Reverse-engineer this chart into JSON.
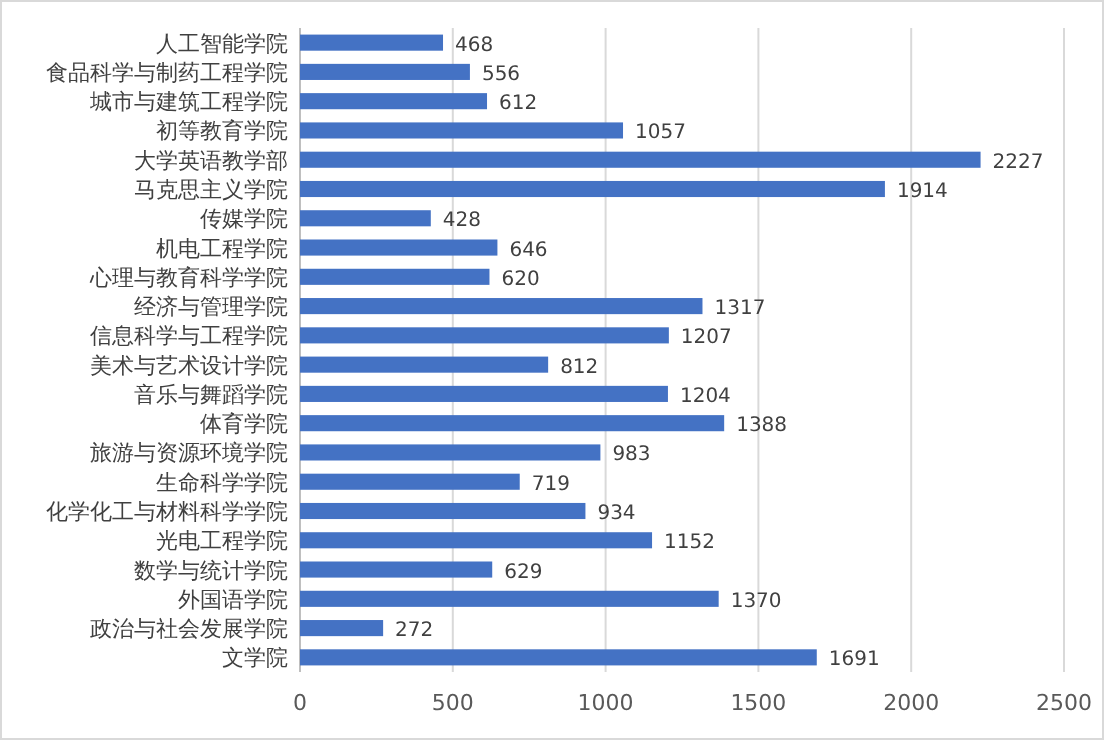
{
  "chart_data": {
    "type": "bar",
    "orientation": "horizontal",
    "categories": [
      "人工智能学院",
      "食品科学与制药工程学院",
      "城市与建筑工程学院",
      "初等教育学院",
      "大学英语教学部",
      "马克思主义学院",
      "传媒学院",
      "机电工程学院",
      "心理与教育科学学院",
      "经济与管理学院",
      "信息科学与工程学院",
      "美术与艺术设计学院",
      "音乐与舞蹈学院",
      "体育学院",
      "旅游与资源环境学院",
      "生命科学学院",
      "化学化工与材料科学学院",
      "光电工程学院",
      "数学与统计学院",
      "外国语学院",
      "政治与社会发展学院",
      "文学院"
    ],
    "values": [
      468,
      556,
      612,
      1057,
      2227,
      1914,
      428,
      646,
      620,
      1317,
      1207,
      812,
      1204,
      1388,
      983,
      719,
      934,
      1152,
      629,
      1370,
      272,
      1691
    ],
    "color": "#4472c4",
    "xlim": [
      0,
      2500
    ],
    "xticks": [
      0,
      500,
      1000,
      1500,
      2000,
      2500
    ],
    "grid": "x",
    "data_labels": true
  }
}
